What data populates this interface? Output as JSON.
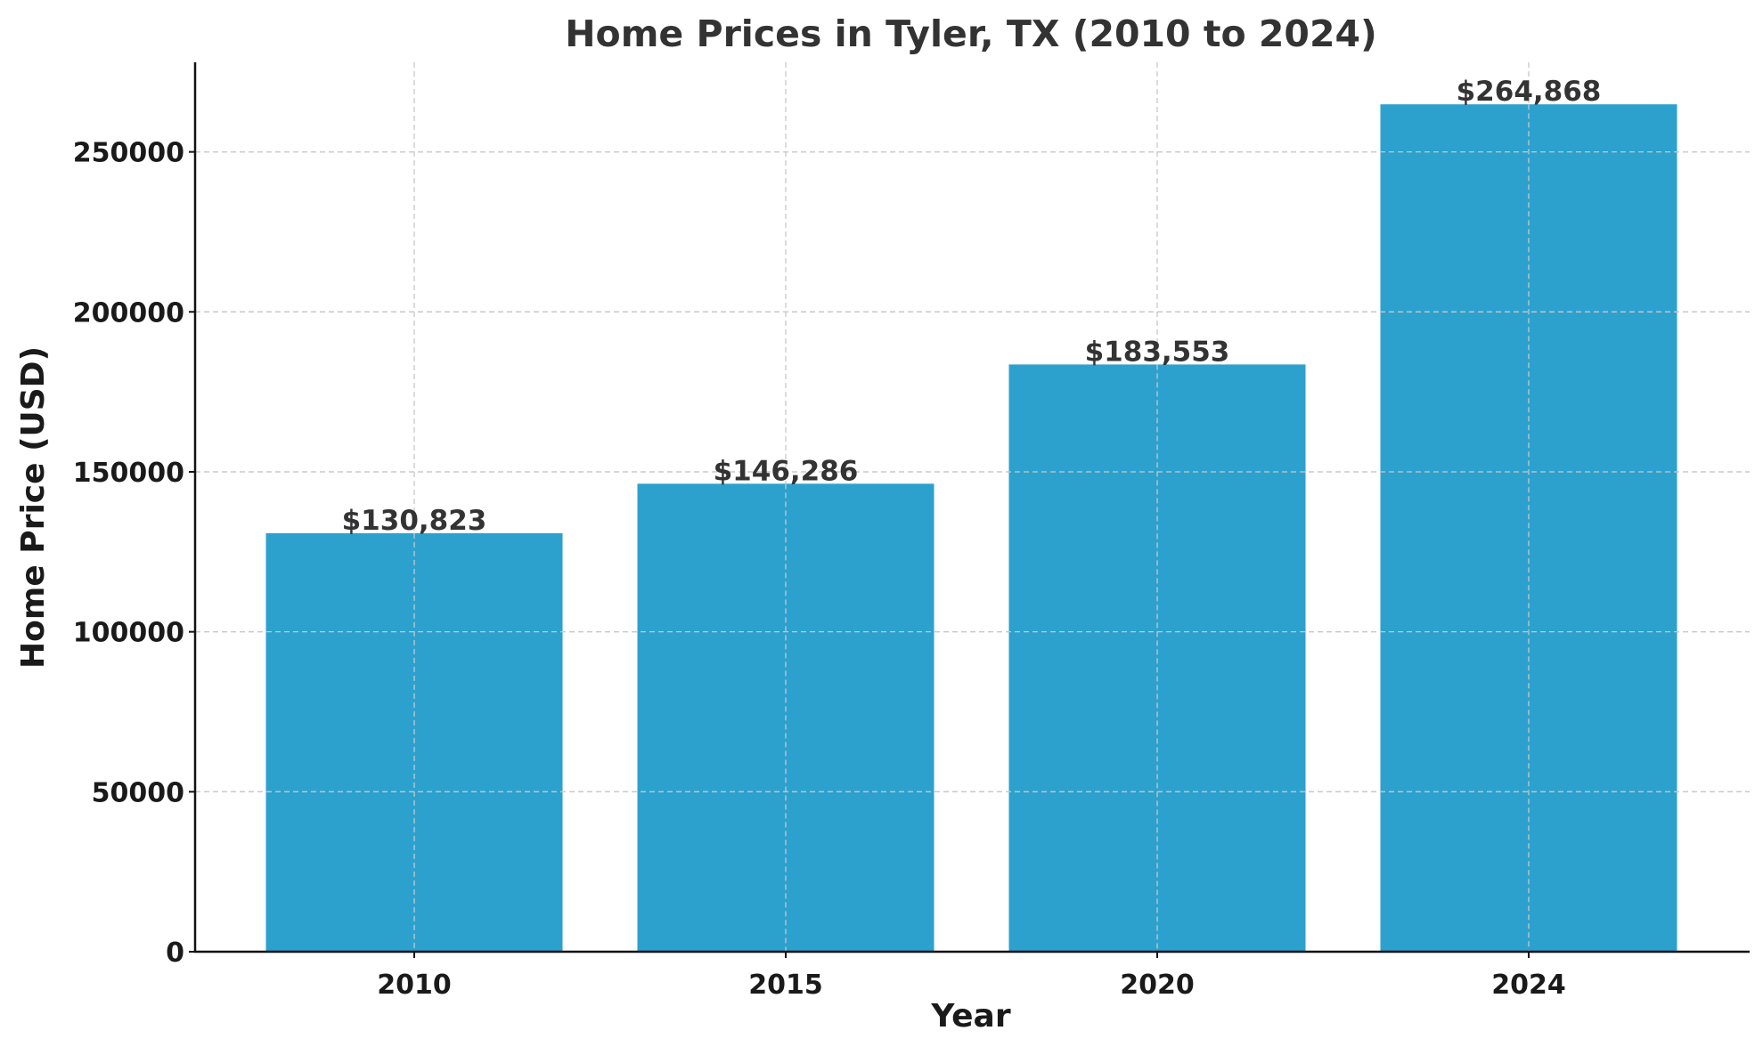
{
  "chart_data": {
    "type": "bar",
    "title": "Home Prices in Tyler, TX (2010 to 2024)",
    "xlabel": "Year",
    "ylabel": "Home Price (USD)",
    "categories": [
      "2010",
      "2015",
      "2020",
      "2024"
    ],
    "values": [
      130823,
      146286,
      183553,
      264868
    ],
    "value_labels": [
      "$130,823",
      "$146,286",
      "$183,553",
      "$264,868"
    ],
    "ylim": [
      0,
      278000
    ],
    "yticks": [
      0,
      50000,
      100000,
      150000,
      200000,
      250000
    ],
    "ytick_labels": [
      "0",
      "50000",
      "100000",
      "150000",
      "200000",
      "250000"
    ],
    "grid": true,
    "bar_color": "#2ca1ce"
  }
}
